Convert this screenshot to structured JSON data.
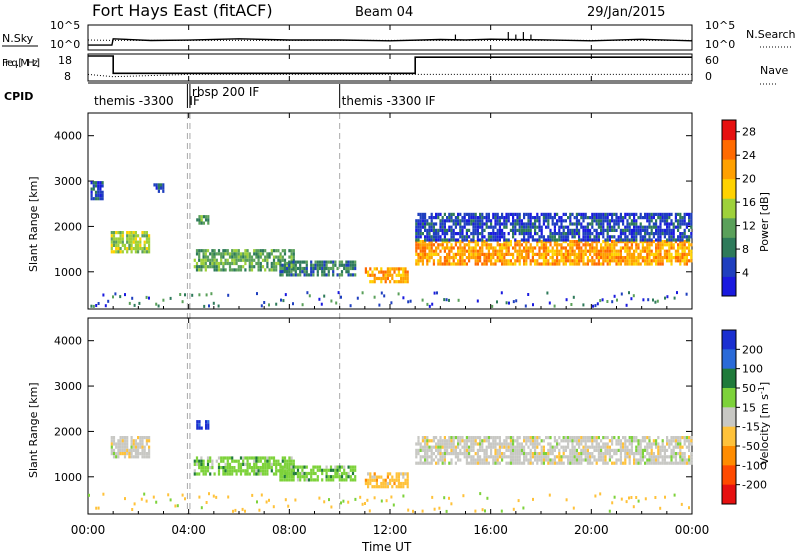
{
  "header": {
    "station": "Fort Hays East (fitACF)",
    "beam": "Beam 04",
    "date": "29/Jan/2015"
  },
  "colors": {
    "power": [
      "#1a1adf",
      "#1f3fbf",
      "#2e7a5a",
      "#5aa05a",
      "#9ed13a",
      "#ffd200",
      "#ffa000",
      "#ff6a00",
      "#e61010"
    ],
    "velocity": [
      "#1a2fd0",
      "#2a6ad8",
      "#1f7a3a",
      "#7dd23a",
      "#c8c8c4",
      "#ffc23a",
      "#ff8c00",
      "#ff4a00",
      "#e61010"
    ],
    "cpid_dash": "#aaaaaa"
  },
  "chart_data": [
    {
      "type": "line",
      "panel": "nsky-nsearch",
      "ylabel_left": "N.Sky",
      "ylabel_right": "N.Search",
      "left_ticks": [
        "10^5",
        "10^0"
      ],
      "right_ticks": [
        "10^5",
        "10^0"
      ],
      "series": [
        {
          "name": "N.Sky",
          "style": "solid",
          "x": [
            0,
            0.95,
            1.0,
            2.5,
            4.0,
            6,
            8,
            10,
            12,
            14,
            15,
            16,
            18,
            20,
            22,
            24
          ],
          "y": [
            0.7,
            0.7,
            2.1,
            1.9,
            1.8,
            1.9,
            1.8,
            1.8,
            1.9,
            1.8,
            1.8,
            1.9,
            1.8,
            1.8,
            1.9,
            1.9
          ]
        },
        {
          "name": "N.Search",
          "style": "dotted",
          "x": [
            0,
            1,
            4,
            8,
            12,
            16,
            20,
            24
          ],
          "y": [
            1.9,
            1.8,
            1.8,
            1.8,
            1.8,
            1.8,
            1.8,
            1.8
          ]
        }
      ],
      "spikes_x": [
        14.6,
        16.7,
        17.0,
        17.3,
        17.6
      ]
    },
    {
      "type": "line",
      "panel": "freq-nave",
      "ylabel_left": "Freq. [MHz]",
      "ylabel_right": "Nave",
      "left_ticks": [
        "18",
        "8"
      ],
      "right_ticks": [
        "60",
        "0"
      ],
      "series": [
        {
          "name": "Freq.",
          "unit": "MHz",
          "style": "solid",
          "x": [
            0,
            1.0,
            1.0,
            13.0,
            13.0,
            24
          ],
          "y": [
            18,
            18,
            10.5,
            10.5,
            17.5,
            17.5
          ]
        },
        {
          "name": "Nave",
          "style": "dotted",
          "x": [
            0,
            1,
            4,
            8,
            12,
            13,
            16,
            20,
            24
          ],
          "y": [
            10,
            9,
            10,
            10,
            10,
            10,
            10,
            10,
            10
          ]
        }
      ]
    },
    {
      "type": "table",
      "panel": "cpid",
      "label": "CPID",
      "segments": [
        {
          "name": "themis -3300",
          "start": 0.0
        },
        {
          "name": "IF",
          "start": 3.95
        },
        {
          "name": "rbsp 200 IF",
          "start": 4.05
        },
        {
          "name": "themis -3300 IF",
          "start": 10.0
        }
      ]
    },
    {
      "type": "heatmap",
      "panel": "power",
      "ylabel": "Slant Range [km]",
      "y_ticks": [
        1000,
        2000,
        3000,
        4000
      ],
      "ylim": [
        180,
        4500
      ],
      "xlim": [
        0,
        24
      ],
      "colorbar_label": "Power [dB]",
      "colorbar_ticks": [
        4,
        8,
        12,
        16,
        20,
        24,
        28
      ],
      "colorbar_range": [
        0,
        30
      ],
      "blobs": [
        {
          "t0": 0.1,
          "t1": 0.6,
          "r0": 2600,
          "r1": 3000,
          "level": 1
        },
        {
          "t0": 0.9,
          "t1": 2.4,
          "r0": 1450,
          "r1": 1900,
          "level": 4
        },
        {
          "t0": 2.6,
          "t1": 3.0,
          "r0": 2800,
          "r1": 2950,
          "level": 1
        },
        {
          "t0": 4.3,
          "t1": 4.8,
          "r0": 2100,
          "r1": 2250,
          "level": 3
        },
        {
          "t0": 4.2,
          "t1": 8.2,
          "r0": 1050,
          "r1": 1500,
          "level": 3
        },
        {
          "t0": 7.6,
          "t1": 10.6,
          "r0": 900,
          "r1": 1250,
          "level": 2
        },
        {
          "t0": 11.0,
          "t1": 12.7,
          "r0": 800,
          "r1": 1100,
          "level": 6
        },
        {
          "t0": 13.0,
          "t1": 24.0,
          "r0": 1200,
          "r1": 1700,
          "level": 6
        },
        {
          "t0": 13.0,
          "t1": 24.0,
          "r0": 1700,
          "r1": 2300,
          "level": 1
        }
      ]
    },
    {
      "type": "heatmap",
      "panel": "velocity",
      "ylabel": "Slant Range [km]",
      "y_ticks": [
        1000,
        2000,
        3000,
        4000
      ],
      "ylim": [
        180,
        4500
      ],
      "xlim": [
        0,
        24
      ],
      "colorbar_label": "Velocity [m s^-1]",
      "colorbar_ticks": [
        200,
        100,
        50,
        15,
        -15,
        -50,
        -100,
        -200
      ],
      "colorbar_range": [
        -250,
        250
      ],
      "blobs": [
        {
          "t0": 0.9,
          "t1": 2.4,
          "r0": 1450,
          "r1": 1900,
          "level": 4
        },
        {
          "t0": 4.2,
          "t1": 8.2,
          "r0": 1050,
          "r1": 1450,
          "level": 3
        },
        {
          "t0": 4.3,
          "t1": 4.8,
          "r0": 2100,
          "r1": 2250,
          "level": 0
        },
        {
          "t0": 7.6,
          "t1": 10.6,
          "r0": 950,
          "r1": 1250,
          "level": 3
        },
        {
          "t0": 11.0,
          "t1": 12.7,
          "r0": 800,
          "r1": 1100,
          "level": 5
        },
        {
          "t0": 13.0,
          "t1": 24.0,
          "r0": 1300,
          "r1": 1900,
          "level": 4
        }
      ]
    }
  ],
  "x_axis": {
    "label": "Time UT",
    "ticks": [
      "00:00",
      "04:00",
      "08:00",
      "12:00",
      "16:00",
      "20:00",
      "00:00"
    ]
  }
}
